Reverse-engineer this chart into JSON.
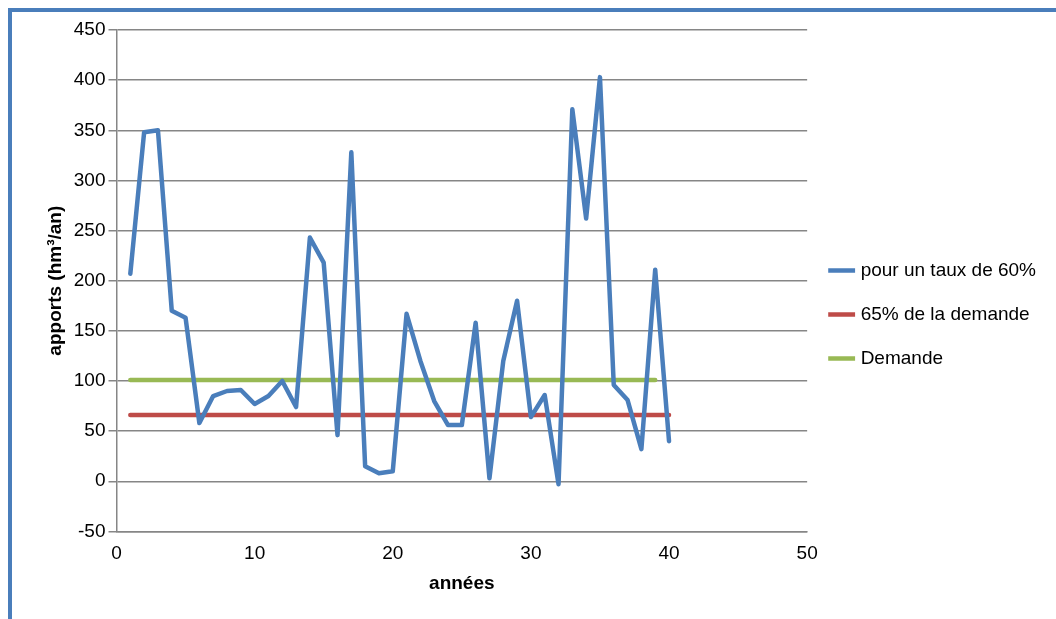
{
  "chart_data": {
    "type": "line",
    "xlabel": "années",
    "ylabel": "apports (hm³/an)",
    "xlim": [
      0,
      50
    ],
    "xticks": [
      0,
      10,
      20,
      30,
      40,
      50
    ],
    "ylim": [
      -50,
      450
    ],
    "yticks": [
      -50,
      0,
      50,
      100,
      150,
      200,
      250,
      300,
      350,
      400,
      450
    ],
    "grid": "y",
    "legend": "right",
    "marker": "none",
    "series": [
      {
        "name": "pour un taux de 60%",
        "color": "#4a7ebb",
        "x": [
          1,
          2,
          3,
          4,
          5,
          6,
          7,
          8,
          9,
          10,
          11,
          12,
          13,
          14,
          15,
          16,
          17,
          18,
          19,
          20,
          21,
          22,
          23,
          24,
          25,
          26,
          27,
          28,
          29,
          30,
          31,
          32,
          33,
          34,
          35,
          36,
          37,
          38,
          39,
          40
        ],
        "values": [
          207,
          348,
          350,
          170,
          163,
          58,
          85,
          90,
          91,
          77,
          85,
          100,
          74,
          243,
          218,
          46,
          328,
          15,
          8,
          10,
          167,
          120,
          80,
          56,
          56,
          158,
          3,
          120,
          180,
          64,
          86,
          -3,
          371,
          262,
          403,
          96,
          81,
          32,
          211,
          40
        ]
      },
      {
        "name": "65% de la demande",
        "color": "#be4b48",
        "x": [
          1,
          40
        ],
        "values": [
          66,
          66
        ]
      },
      {
        "name": "Demande",
        "color": "#98b954",
        "x": [
          1,
          39
        ],
        "values": [
          101,
          101
        ]
      }
    ]
  }
}
